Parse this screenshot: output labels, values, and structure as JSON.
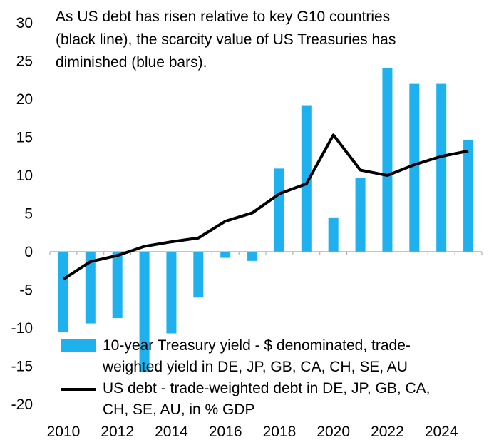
{
  "chart_data": {
    "type": "bar+line",
    "title_lines": [
      "As US debt has risen relative to key G10 countries",
      "(black line), the scarcity value of US Treasuries has",
      "diminished (blue bars)."
    ],
    "categories": [
      2010,
      2011,
      2012,
      2013,
      2014,
      2015,
      2016,
      2017,
      2018,
      2019,
      2020,
      2021,
      2022,
      2023,
      2024,
      2025
    ],
    "x_tick_labels": [
      "2010",
      "2012",
      "2014",
      "2016",
      "2018",
      "2020",
      "2022",
      "2024"
    ],
    "ylim": [
      -20,
      30
    ],
    "y_ticks": [
      30,
      25,
      20,
      15,
      10,
      5,
      0,
      -5,
      -10,
      -15,
      -20
    ],
    "series": [
      {
        "name": "10-year Treasury yield - $ denominated, trade-weighted yield in DE, JP, GB, CA, CH, SE, AU",
        "legend_lines": [
          "10-year Treasury yield - $ denominated, trade-",
          "weighted yield in DE, JP, GB, CA, CH, SE, AU"
        ],
        "type": "bar",
        "color": "#1eb1ee",
        "values": [
          -10.5,
          -9.4,
          -8.7,
          -15.8,
          -10.7,
          -6.0,
          -0.8,
          -1.2,
          10.9,
          19.2,
          4.5,
          9.7,
          24.1,
          22.0,
          22.0,
          14.6
        ]
      },
      {
        "name": "US debt - trade-weighted debt in DE, JP, GB, CA, CH, SE, AU, in % GDP",
        "legend_lines": [
          "US debt - trade-weighted debt in DE, JP, GB, CA,",
          "CH, SE, AU, in % GDP"
        ],
        "type": "line",
        "color": "#000000",
        "values": [
          -3.6,
          -1.3,
          -0.5,
          0.7,
          1.3,
          1.8,
          4.0,
          5.1,
          7.6,
          8.9,
          15.3,
          10.7,
          10.0,
          11.4,
          12.5,
          13.2
        ]
      }
    ]
  }
}
